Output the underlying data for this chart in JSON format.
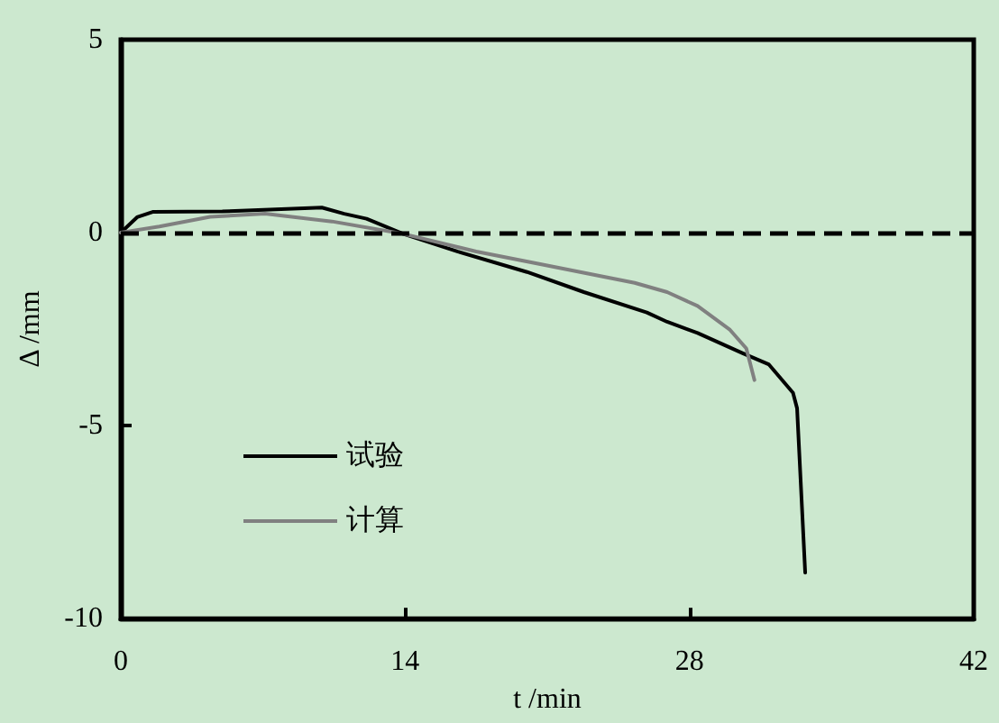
{
  "chart_data": {
    "type": "line",
    "xlabel": "t /min",
    "ylabel": "Δ /mm",
    "xlim": [
      0,
      42
    ],
    "xticks": [
      0,
      14,
      28,
      42
    ],
    "ylim": [
      -10,
      5
    ],
    "yticks": [
      -10,
      -5,
      0,
      5
    ],
    "grid": false,
    "legend": "bottom left",
    "marker": "none",
    "line_style": "solid",
    "ref_lines": [
      {
        "axis": "y",
        "value": 0,
        "label": null,
        "color": "#000000",
        "line_style": "dashed"
      }
    ],
    "series": [
      {
        "name": "试验",
        "color": "#000000",
        "x": [
          0,
          0.8,
          1.6,
          5,
          9.9,
          11,
          12.1,
          13.9,
          16.6,
          20,
          22.8,
          25.9,
          26.9,
          28.4,
          30.6,
          31.9,
          33.1,
          33.3,
          33.7
        ],
        "values": [
          0,
          0.4,
          0.54,
          0.55,
          0.65,
          0.49,
          0.36,
          -0.03,
          -0.49,
          -1.02,
          -1.54,
          -2.07,
          -2.31,
          -2.6,
          -3.12,
          -3.41,
          -4.15,
          -4.55,
          -8.81
        ]
      },
      {
        "name": "计算",
        "color": "#808080",
        "x": [
          0,
          1.9,
          4.4,
          7.1,
          10.4,
          13.9,
          17.5,
          20.6,
          25.3,
          26.9,
          28.4,
          30,
          30.8,
          31.2
        ],
        "values": [
          0,
          0.16,
          0.41,
          0.49,
          0.29,
          -0.03,
          -0.49,
          -0.81,
          -1.3,
          -1.54,
          -1.9,
          -2.52,
          -3.0,
          -3.82
        ]
      }
    ]
  }
}
